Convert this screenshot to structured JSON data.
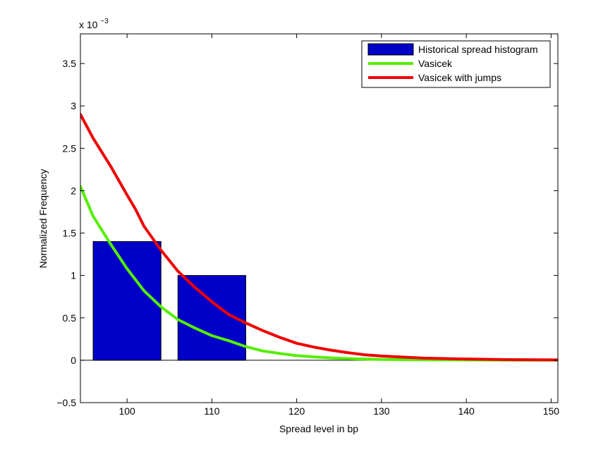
{
  "chart_data": {
    "type": "bar",
    "title": "",
    "xlabel": "Spread level in bp",
    "ylabel": "Normalized Frequency",
    "y_multiplier_text": "x 10",
    "y_multiplier_exp": "−3",
    "xlim": [
      94.5,
      150.8
    ],
    "ylim": [
      -0.5,
      3.85
    ],
    "x_ticks": [
      100,
      110,
      120,
      130,
      140,
      150
    ],
    "x_tick_labels": [
      "100",
      "110",
      "120",
      "130",
      "140",
      "150"
    ],
    "y_ticks": [
      -0.5,
      0,
      0.5,
      1,
      1.5,
      2,
      2.5,
      3,
      3.5
    ],
    "y_tick_labels": [
      "−0.5",
      "0",
      "0.5",
      "1",
      "1.5",
      "2",
      "2.5",
      "3",
      "3.5"
    ],
    "legend_position": "top-right",
    "grid": false,
    "series": [
      {
        "name": "Historical spread histogram",
        "kind": "bar",
        "color": "#0000c8",
        "bars": [
          {
            "x_start": 96,
            "x_end": 104,
            "value": 1.4
          },
          {
            "x_start": 106,
            "x_end": 114,
            "value": 1.0
          }
        ]
      },
      {
        "name": "Vasicek",
        "kind": "line",
        "color": "#55ee00",
        "x": [
          94.5,
          96,
          98,
          100,
          102,
          104,
          106,
          108,
          110,
          112,
          114,
          116,
          118,
          120,
          122,
          124,
          126,
          128,
          130,
          135,
          140,
          145,
          150.8
        ],
        "y": [
          2.05,
          1.7,
          1.38,
          1.08,
          0.82,
          0.63,
          0.48,
          0.38,
          0.29,
          0.23,
          0.16,
          0.11,
          0.08,
          0.055,
          0.04,
          0.028,
          0.02,
          0.014,
          0.01,
          0.005,
          0.003,
          0.0015,
          0.001
        ]
      },
      {
        "name": "Vasicek with jumps",
        "kind": "line",
        "color": "#ee0000",
        "x": [
          94.5,
          96,
          98,
          100,
          101,
          102,
          104,
          106,
          108,
          110,
          112,
          114,
          116,
          118,
          120,
          122,
          124,
          126,
          128,
          130,
          135,
          140,
          145,
          150.8
        ],
        "y": [
          2.9,
          2.62,
          2.3,
          1.95,
          1.78,
          1.58,
          1.3,
          1.05,
          0.86,
          0.69,
          0.54,
          0.44,
          0.35,
          0.27,
          0.2,
          0.155,
          0.12,
          0.09,
          0.065,
          0.05,
          0.025,
          0.015,
          0.007,
          0.004
        ]
      }
    ]
  }
}
